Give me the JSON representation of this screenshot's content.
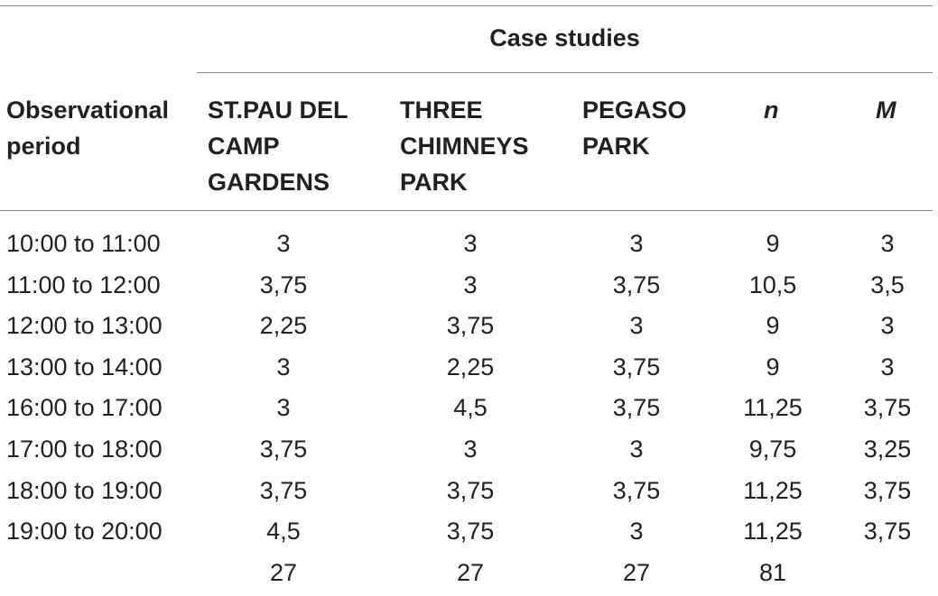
{
  "header": {
    "group_title": "Case studies",
    "period_label_line1": "Observational",
    "period_label_line2": "period",
    "columns": [
      {
        "lines": [
          "ST.PAU DEL",
          "CAMP",
          "GARDENS"
        ]
      },
      {
        "lines": [
          "THREE",
          "CHIMNEYS",
          "PARK"
        ]
      },
      {
        "lines": [
          "PEGASO",
          "PARK"
        ]
      },
      {
        "lines": [
          "n"
        ]
      },
      {
        "lines": [
          "M"
        ]
      }
    ]
  },
  "rows": [
    {
      "period": "10:00 to 11:00",
      "values": [
        "3",
        "3",
        "3",
        "9",
        "3"
      ]
    },
    {
      "period": "11:00 to 12:00",
      "values": [
        "3,75",
        "3",
        "3,75",
        "10,5",
        "3,5"
      ]
    },
    {
      "period": "12:00 to 13:00",
      "values": [
        "2,25",
        "3,75",
        "3",
        "9",
        "3"
      ]
    },
    {
      "period": "13:00 to 14:00",
      "values": [
        "3",
        "2,25",
        "3,75",
        "9",
        "3"
      ]
    },
    {
      "period": "16:00 to 17:00",
      "values": [
        "3",
        "4,5",
        "3,75",
        "11,25",
        "3,75"
      ]
    },
    {
      "period": "17:00 to 18:00",
      "values": [
        "3,75",
        "3",
        "3",
        "9,75",
        "3,25"
      ]
    },
    {
      "period": "18:00 to 19:00",
      "values": [
        "3,75",
        "3,75",
        "3,75",
        "11,25",
        "3,75"
      ]
    },
    {
      "period": "19:00 to 20:00",
      "values": [
        "4,5",
        "3,75",
        "3",
        "11,25",
        "3,75"
      ]
    }
  ],
  "totals": {
    "period": "",
    "values": [
      "27",
      "27",
      "27",
      "81",
      ""
    ]
  }
}
